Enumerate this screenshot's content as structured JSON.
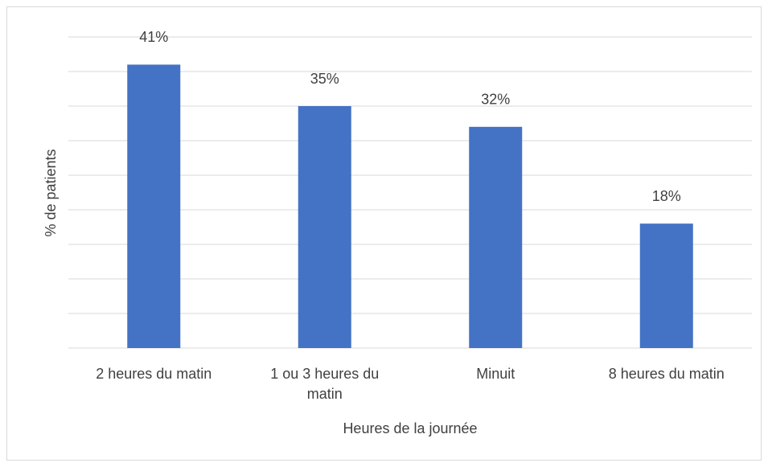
{
  "chart_data": {
    "type": "bar",
    "categories": [
      "2 heures du matin",
      "1 ou 3 heures du matin",
      "Minuit",
      "8 heures du matin"
    ],
    "values": [
      41,
      35,
      32,
      18
    ],
    "value_labels": [
      "41%",
      "35%",
      "32%",
      "18%"
    ],
    "color": "#4472c4",
    "ylim": [
      0,
      45
    ],
    "yticks": [
      0,
      5,
      10,
      15,
      20,
      25,
      30,
      35,
      40,
      45
    ],
    "grid": true,
    "xlabel": "Heures de la journée",
    "ylabel": "% de patients"
  }
}
